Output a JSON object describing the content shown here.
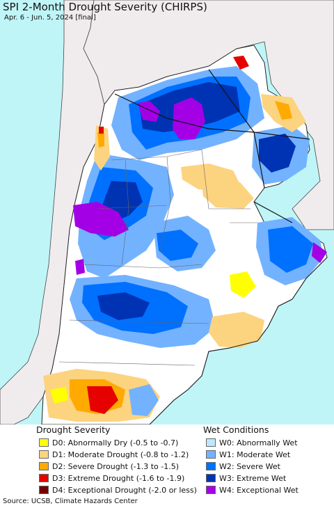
{
  "header": {
    "title": "SPI 2-Month Drought Severity (CHIRPS)",
    "subtitle": "Apr. 6 - Jun. 5, 2024 [final]"
  },
  "map": {
    "region": "Argentina, Paraguay, Uruguay and southern Brazil",
    "colors": {
      "ocean": "#bff5f7",
      "land_outside": "#f0ecee",
      "land_neutral": "#ffffff",
      "border": "#222222"
    }
  },
  "legend": {
    "drought": {
      "heading": "Drought Severity",
      "items": [
        {
          "label": "D0: Abnormally Dry (-0.5 to -0.7)",
          "color": "#ffff00"
        },
        {
          "label": "D1: Moderate Drought (-0.8 to -1.2)",
          "color": "#fcd37f"
        },
        {
          "label": "D2: Severe Drought (-1.3 to -1.5)",
          "color": "#ffaa00"
        },
        {
          "label": "D3: Extreme Drought (-1.6 to -1.9)",
          "color": "#e60000"
        },
        {
          "label": "D4: Exceptional Drought (-2.0 or less)",
          "color": "#730000"
        }
      ]
    },
    "wet": {
      "heading": "Wet Conditions",
      "items": [
        {
          "label": "W0: Abnormally Wet",
          "color": "#bee8ff"
        },
        {
          "label": "W1: Moderate Wet",
          "color": "#73b2ff"
        },
        {
          "label": "W2: Severe Wet",
          "color": "#0070ff"
        },
        {
          "label": "W3: Extreme Wet",
          "color": "#0033b3"
        },
        {
          "label": "W4: Exceptional Wet",
          "color": "#a300e6"
        }
      ]
    }
  },
  "footer": {
    "source": "Source: UCSB, Climate Hazards Center"
  }
}
